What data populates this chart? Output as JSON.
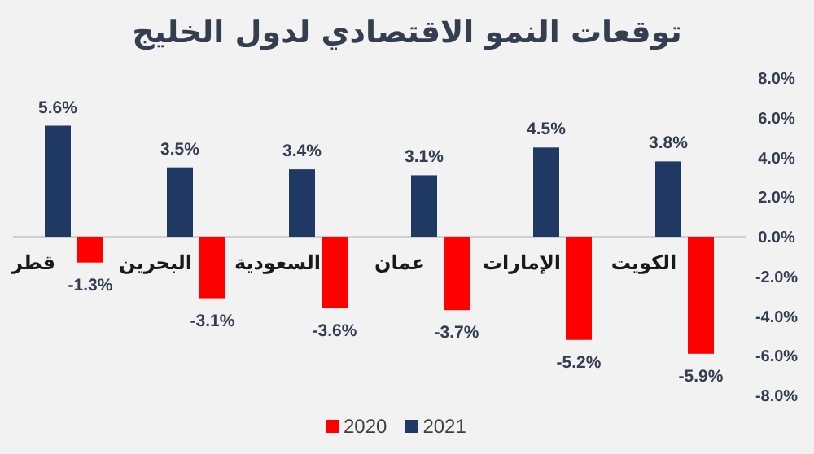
{
  "chart_data": {
    "type": "bar",
    "title": "توقعات النمو الاقتصادي لدول الخليج",
    "categories": [
      "قطر",
      "البحرين",
      "السعودية",
      "عمان",
      "الإمارات",
      "الكويت"
    ],
    "series": [
      {
        "name": "2020",
        "color": "#ff0000",
        "values": [
          -1.3,
          -3.1,
          -3.6,
          -3.7,
          -5.2,
          -5.9
        ],
        "value_labels": [
          "-1.3%",
          "-3.1%",
          "-3.6%",
          "-3.7%",
          "-5.2%",
          "-5.9%"
        ]
      },
      {
        "name": "2021",
        "color": "#203864",
        "values": [
          5.6,
          3.5,
          3.4,
          3.1,
          4.5,
          3.8
        ],
        "value_labels": [
          "5.6%",
          "3.5%",
          "3.4%",
          "3.1%",
          "4.5%",
          "3.8%"
        ]
      }
    ],
    "ylim": [
      -8,
      8
    ],
    "yticks": [
      {
        "value": -8,
        "label": "-8.0%"
      },
      {
        "value": -6,
        "label": "-6.0%"
      },
      {
        "value": -4,
        "label": "-4.0%"
      },
      {
        "value": -2,
        "label": "-2.0%"
      },
      {
        "value": 0,
        "label": "0.0%"
      },
      {
        "value": 2,
        "label": "2.0%"
      },
      {
        "value": 4,
        "label": "4.0%"
      },
      {
        "value": 6,
        "label": "6.0%"
      },
      {
        "value": 8,
        "label": "8.0%"
      }
    ],
    "grid": false,
    "legend": "bottom"
  }
}
